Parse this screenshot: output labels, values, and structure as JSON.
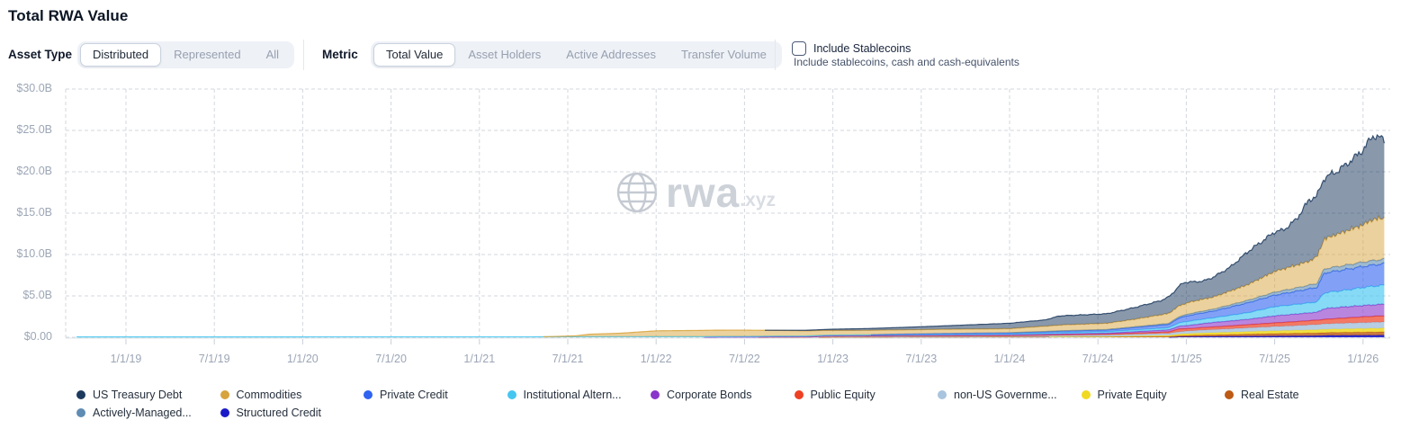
{
  "header": {
    "title": "Total RWA Value"
  },
  "controls": {
    "asset_type_label": "Asset Type",
    "asset_type": {
      "options": [
        "Distributed",
        "Represented",
        "All"
      ],
      "selected": "Distributed"
    },
    "metric_label": "Metric",
    "metric": {
      "options": [
        "Total Value",
        "Asset Holders",
        "Active Addresses",
        "Transfer Volume"
      ],
      "selected": "Total Value"
    },
    "stablecoins": {
      "label": "Include Stablecoins",
      "description": "Include stablecoins, cash and cash-equivalents",
      "checked": false
    }
  },
  "watermark": {
    "icon": "globe-icon",
    "text": "rwa",
    "suffix": ".xyz"
  },
  "chart_data": {
    "type": "area",
    "stacked": true,
    "units": "USD billions",
    "ylim": [
      0,
      30
    ],
    "grid": "dashed",
    "y_ticks": [
      "$30.0B",
      "$25.0B",
      "$20.0B",
      "$15.0B",
      "$10.0B",
      "$5.0B",
      "$0.00"
    ],
    "x_ticks": [
      "1/1/19",
      "7/1/19",
      "1/1/20",
      "7/1/20",
      "1/1/21",
      "7/1/21",
      "1/1/22",
      "7/1/22",
      "1/1/23",
      "7/1/23",
      "1/1/24",
      "7/1/24",
      "1/1/25",
      "7/1/25",
      "1/1/26"
    ],
    "x_tick_years": [
      2019.0,
      2019.5,
      2020.0,
      2020.5,
      2021.0,
      2021.5,
      2022.0,
      2022.5,
      2023.0,
      2023.5,
      2024.0,
      2024.5,
      2025.0,
      2025.5,
      2026.0
    ],
    "x_range_years": [
      2018.72,
      2026.12
    ],
    "series": [
      {
        "key": "structured_credit",
        "label": "Structured Credit",
        "color": "#1a1ac8",
        "fill_alpha": 0.9,
        "points": [
          [
            2018.72,
            0
          ],
          [
            2024.9,
            0
          ],
          [
            2024.96,
            0.06
          ],
          [
            2025.1,
            0.1
          ],
          [
            2025.5,
            0.15
          ],
          [
            2025.75,
            0.18
          ],
          [
            2025.8,
            0.22
          ],
          [
            2026.12,
            0.25
          ]
        ]
      },
      {
        "key": "real_estate",
        "label": "Real Estate",
        "color": "#bd5a14",
        "fill_alpha": 0.8,
        "points": [
          [
            2018.72,
            0
          ],
          [
            2022.9,
            0
          ],
          [
            2023.0,
            0.02
          ],
          [
            2023.6,
            0.04
          ],
          [
            2024.3,
            0.06
          ],
          [
            2024.55,
            0.06
          ],
          [
            2024.9,
            0.1
          ],
          [
            2025.0,
            0.15
          ],
          [
            2025.25,
            0.22
          ],
          [
            2025.5,
            0.3
          ],
          [
            2025.78,
            0.35
          ],
          [
            2026.12,
            0.4
          ]
        ]
      },
      {
        "key": "private_equity",
        "label": "Private Equity",
        "color": "#f0d922",
        "fill_alpha": 0.85,
        "points": [
          [
            2018.72,
            0
          ],
          [
            2024.2,
            0
          ],
          [
            2024.3,
            0.02
          ],
          [
            2024.55,
            0.04
          ],
          [
            2024.9,
            0.12
          ],
          [
            2024.97,
            0.2
          ],
          [
            2025.08,
            0.24
          ],
          [
            2025.35,
            0.3
          ],
          [
            2025.6,
            0.35
          ],
          [
            2025.78,
            0.4
          ],
          [
            2026.12,
            0.45
          ]
        ]
      },
      {
        "key": "non_us_government_debt",
        "label": "non-US Governme...",
        "color": "#a9c4de",
        "fill_alpha": 0.85,
        "points": [
          [
            2018.72,
            0
          ],
          [
            2022.85,
            0
          ],
          [
            2022.95,
            0.08
          ],
          [
            2023.6,
            0.1
          ],
          [
            2024.0,
            0.1
          ],
          [
            2024.3,
            0.15
          ],
          [
            2024.55,
            0.18
          ],
          [
            2024.9,
            0.25
          ],
          [
            2025.02,
            0.32
          ],
          [
            2025.35,
            0.45
          ],
          [
            2025.6,
            0.55
          ],
          [
            2025.78,
            0.65
          ],
          [
            2026.12,
            0.75
          ]
        ]
      },
      {
        "key": "public_equity",
        "label": "Public Equity",
        "color": "#ee4023",
        "fill_alpha": 0.7,
        "points": [
          [
            2018.72,
            0
          ],
          [
            2022.55,
            0
          ],
          [
            2022.65,
            0.02
          ],
          [
            2023.0,
            0.03
          ],
          [
            2024.0,
            0.07
          ],
          [
            2024.55,
            0.1
          ],
          [
            2024.9,
            0.18
          ],
          [
            2024.96,
            0.35
          ],
          [
            2025.02,
            0.28
          ],
          [
            2025.25,
            0.35
          ],
          [
            2025.5,
            0.45
          ],
          [
            2025.78,
            0.55
          ],
          [
            2026.0,
            0.7
          ],
          [
            2026.12,
            0.75
          ]
        ]
      },
      {
        "key": "corporate_bonds",
        "label": "Corporate Bonds",
        "color": "#8a35ca",
        "fill_alpha": 0.6,
        "points": [
          [
            2018.72,
            0
          ],
          [
            2022.25,
            0
          ],
          [
            2022.35,
            0.02
          ],
          [
            2023.0,
            0.04
          ],
          [
            2023.6,
            0.06
          ],
          [
            2024.0,
            0.08
          ],
          [
            2024.55,
            0.12
          ],
          [
            2024.9,
            0.25
          ],
          [
            2025.02,
            0.4
          ],
          [
            2025.15,
            0.55
          ],
          [
            2025.35,
            0.65
          ],
          [
            2025.5,
            0.85
          ],
          [
            2025.7,
            0.95
          ],
          [
            2025.74,
            0.95
          ],
          [
            2025.78,
            1.3
          ],
          [
            2025.9,
            1.35
          ],
          [
            2026.12,
            1.4
          ]
        ]
      },
      {
        "key": "institutional_alternative_funds",
        "label": "Institutional Altern...",
        "color": "#45c6f0",
        "fill_alpha": 0.65,
        "points": [
          [
            2018.72,
            0.04
          ],
          [
            2021.3,
            0.05
          ],
          [
            2021.5,
            0.06
          ],
          [
            2022.0,
            0.08
          ],
          [
            2022.9,
            0.1
          ],
          [
            2023.6,
            0.12
          ],
          [
            2024.0,
            0.12
          ],
          [
            2024.55,
            0.18
          ],
          [
            2024.9,
            0.25
          ],
          [
            2024.96,
            0.4
          ],
          [
            2025.02,
            0.5
          ],
          [
            2025.15,
            0.55
          ],
          [
            2025.35,
            0.8
          ],
          [
            2025.5,
            1.1
          ],
          [
            2025.7,
            1.2
          ],
          [
            2025.74,
            1.25
          ],
          [
            2025.78,
            1.9
          ],
          [
            2025.9,
            2.0
          ],
          [
            2026.02,
            2.2
          ],
          [
            2026.12,
            2.3
          ]
        ]
      },
      {
        "key": "private_credit",
        "label": "Private Credit",
        "color": "#2f63f0",
        "fill_alpha": 0.6,
        "points": [
          [
            2018.72,
            0
          ],
          [
            2023.2,
            0
          ],
          [
            2023.3,
            0.03
          ],
          [
            2023.6,
            0.08
          ],
          [
            2024.0,
            0.12
          ],
          [
            2024.3,
            0.18
          ],
          [
            2024.55,
            0.2
          ],
          [
            2024.9,
            0.4
          ],
          [
            2024.96,
            0.6
          ],
          [
            2025.02,
            0.7
          ],
          [
            2025.15,
            0.8
          ],
          [
            2025.35,
            1.2
          ],
          [
            2025.5,
            1.4
          ],
          [
            2025.7,
            1.7
          ],
          [
            2025.74,
            1.75
          ],
          [
            2025.78,
            2.4
          ],
          [
            2025.9,
            2.5
          ],
          [
            2026.02,
            2.55
          ],
          [
            2026.12,
            2.6
          ]
        ]
      },
      {
        "key": "actively_managed",
        "label": "Actively-Managed...",
        "color": "#5f8cb4",
        "fill_alpha": 0.6,
        "points": [
          [
            2018.72,
            0
          ],
          [
            2024.0,
            0
          ],
          [
            2024.1,
            0.03
          ],
          [
            2024.55,
            0.06
          ],
          [
            2024.9,
            0.12
          ],
          [
            2025.02,
            0.2
          ],
          [
            2025.35,
            0.3
          ],
          [
            2025.6,
            0.4
          ],
          [
            2025.78,
            0.5
          ],
          [
            2026.12,
            0.55
          ]
        ]
      },
      {
        "key": "commodities",
        "label": "Commodities",
        "color": "#d7a33c",
        "fill_alpha": 0.5,
        "points": [
          [
            2018.72,
            0
          ],
          [
            2021.35,
            0
          ],
          [
            2021.45,
            0.05
          ],
          [
            2021.55,
            0.12
          ],
          [
            2021.62,
            0.3
          ],
          [
            2021.8,
            0.42
          ],
          [
            2022.0,
            0.7
          ],
          [
            2022.3,
            0.75
          ],
          [
            2022.5,
            0.75
          ],
          [
            2022.9,
            0.6
          ],
          [
            2023.0,
            0.55
          ],
          [
            2023.5,
            0.5
          ],
          [
            2024.0,
            0.5
          ],
          [
            2024.3,
            0.7
          ],
          [
            2024.55,
            0.75
          ],
          [
            2024.7,
            0.9
          ],
          [
            2024.9,
            1.2
          ],
          [
            2024.96,
            1.3
          ],
          [
            2025.02,
            1.4
          ],
          [
            2025.15,
            1.45
          ],
          [
            2025.35,
            1.9
          ],
          [
            2025.5,
            2.5
          ],
          [
            2025.7,
            2.9
          ],
          [
            2025.78,
            3.6
          ],
          [
            2025.9,
            4.1
          ],
          [
            2026.0,
            4.5
          ],
          [
            2026.06,
            5.0
          ],
          [
            2026.12,
            4.9
          ]
        ]
      },
      {
        "key": "us_treasury_debt",
        "label": "US Treasury Debt",
        "color": "#1c3a5e",
        "fill_alpha": 0.52,
        "points": [
          [
            2018.72,
            0
          ],
          [
            2022.6,
            0
          ],
          [
            2022.75,
            0.04
          ],
          [
            2022.95,
            0.1
          ],
          [
            2023.0,
            0.15
          ],
          [
            2023.3,
            0.25
          ],
          [
            2023.6,
            0.4
          ],
          [
            2024.0,
            0.65
          ],
          [
            2024.2,
            0.75
          ],
          [
            2024.28,
            1.1
          ],
          [
            2024.55,
            1.15
          ],
          [
            2024.7,
            1.4
          ],
          [
            2024.85,
            1.7
          ],
          [
            2024.92,
            2.1
          ],
          [
            2024.96,
            2.4
          ],
          [
            2024.99,
            2.6
          ],
          [
            2025.05,
            2.3
          ],
          [
            2025.1,
            2.2
          ],
          [
            2025.15,
            2.4
          ],
          [
            2025.25,
            2.9
          ],
          [
            2025.35,
            4.0
          ],
          [
            2025.45,
            4.5
          ],
          [
            2025.5,
            4.8
          ],
          [
            2025.55,
            4.7
          ],
          [
            2025.62,
            5.5
          ],
          [
            2025.7,
            7.5
          ],
          [
            2025.74,
            7.3
          ],
          [
            2025.78,
            7.4
          ],
          [
            2025.85,
            7.6
          ],
          [
            2025.9,
            8.0
          ],
          [
            2025.97,
            8.7
          ],
          [
            2026.02,
            9.4
          ],
          [
            2026.06,
            10.2
          ],
          [
            2026.09,
            9.8
          ],
          [
            2026.12,
            9.5
          ]
        ]
      }
    ],
    "legend_rows": [
      [
        10,
        9,
        7,
        6,
        5,
        4,
        3,
        2,
        1
      ],
      [
        8,
        0
      ]
    ]
  }
}
